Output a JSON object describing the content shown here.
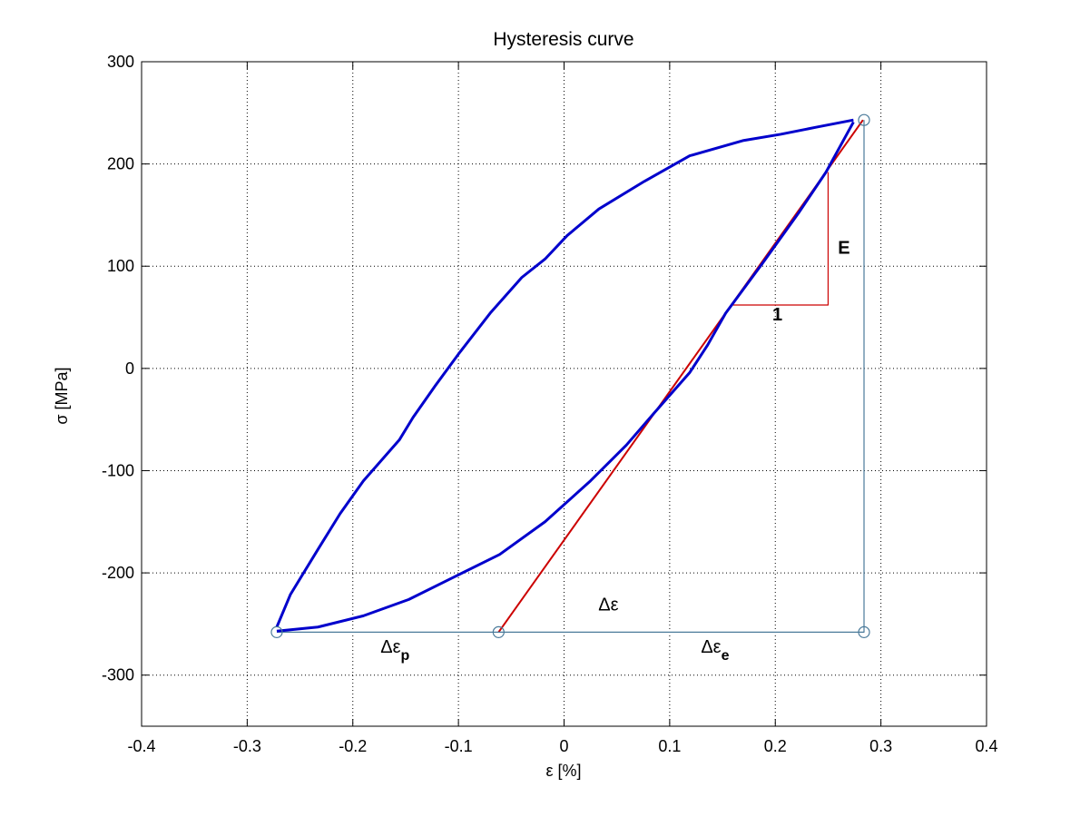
{
  "chart_data": {
    "type": "line",
    "title": "Hysteresis curve",
    "xlabel": "ε [%]",
    "ylabel": "σ [MPa]",
    "xlim": [
      -0.4,
      0.4
    ],
    "ylim": [
      -350,
      300
    ],
    "xticks": [
      -0.4,
      -0.3,
      -0.2,
      -0.1,
      0,
      0.1,
      0.2,
      0.3,
      0.4
    ],
    "yticks": [
      -300,
      -200,
      -100,
      0,
      100,
      200,
      300
    ],
    "grid": true,
    "series": [
      {
        "color": "#0000cc",
        "x": [
          -0.272,
          -0.259,
          -0.233,
          -0.212,
          -0.19,
          -0.156,
          -0.143,
          -0.122,
          -0.1,
          -0.07,
          -0.04,
          -0.018,
          0.003,
          0.033,
          0.076,
          0.119,
          0.17,
          0.205,
          0.239,
          0.274
        ],
        "values": [
          -253,
          -221,
          -177,
          -142,
          -110,
          -70,
          -48,
          -17,
          14,
          54,
          89,
          107,
          130,
          156,
          183,
          208,
          223,
          229,
          236,
          243
        ]
      },
      {
        "color": "#0000cc",
        "x": [
          -0.272,
          -0.233,
          -0.19,
          -0.147,
          -0.104,
          -0.061,
          -0.018,
          0.025,
          0.059,
          0.085,
          0.119,
          0.136,
          0.153,
          0.188,
          0.222,
          0.248,
          0.274
        ],
        "values": [
          -257,
          -253,
          -242,
          -226,
          -204,
          -182,
          -150,
          -110,
          -75,
          -44,
          -4,
          23,
          54,
          103,
          152,
          192,
          241
        ]
      }
    ],
    "lines": [
      {
        "color": "#cc0000",
        "x": [
          -0.062,
          0.283
        ],
        "values": [
          -258,
          243
        ]
      },
      {
        "color": "#cc0000",
        "x": [
          0.16,
          0.25,
          0.25
        ],
        "values": [
          62,
          62,
          192
        ]
      },
      {
        "color": "#4a7a9a",
        "x": [
          -0.272,
          0.284,
          0.284
        ],
        "values": [
          -258,
          -258,
          243
        ]
      }
    ],
    "markers": {
      "color": "#4a7a9a",
      "x": [
        -0.272,
        -0.062,
        0.284,
        0.284
      ],
      "values": [
        -258,
        -258,
        -258,
        243
      ]
    },
    "annotations": [
      {
        "text": "E",
        "x": 0.265,
        "y": 112,
        "bold": true
      },
      {
        "text": "1",
        "x": 0.202,
        "y": 47,
        "bold": true
      },
      {
        "text": "Δε",
        "x": 0.042,
        "y": -237
      },
      {
        "text": "Δε",
        "sub": "p",
        "x": -0.16,
        "y": -278
      },
      {
        "text": "Δε",
        "sub": "e",
        "x": 0.143,
        "y": -278
      }
    ]
  }
}
